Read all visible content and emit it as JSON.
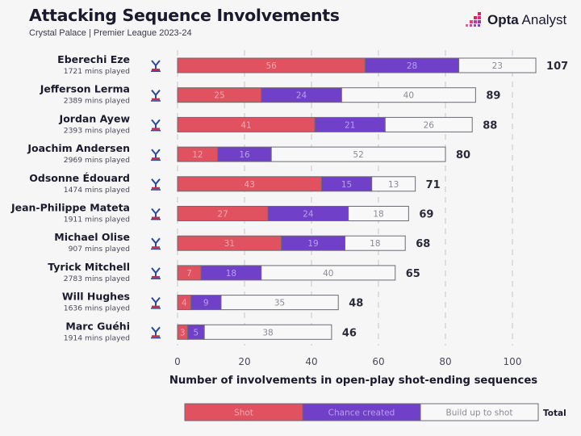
{
  "header": {
    "title": "Attacking Sequence Involvements",
    "subtitle": "Crystal Palace | Premier League 2023-24",
    "brand_bold": "Opta",
    "brand_light": " Analyst"
  },
  "colors": {
    "shot": "#e05260",
    "chance": "#7040c8",
    "buildup": "#f8f8f9",
    "outline": "#6e6a72",
    "grid": "#cfcfd4"
  },
  "chart_data": {
    "type": "bar",
    "orientation": "horizontal",
    "stacked": true,
    "title": "Attacking Sequence Involvements",
    "subtitle": "Crystal Palace | Premier League 2023-24",
    "xlabel": "Number of involvements in open-play shot-ending sequences",
    "ylabel": "",
    "xlim": [
      0,
      107
    ],
    "xticks": [
      0,
      20,
      40,
      60,
      80,
      100
    ],
    "grid": "vertical dashed",
    "legend_position": "bottom",
    "legend": [
      "Shot",
      "Chance created",
      "Build up to shot"
    ],
    "total_label": "Total",
    "categories": [
      "Eberechi Eze",
      "Jefferson Lerma",
      "Jordan Ayew",
      "Joachim Andersen",
      "Odsonne Édouard",
      "Jean-Philippe Mateta",
      "Michael Olise",
      "Tyrick Mitchell",
      "Will Hughes",
      "Marc Guéhi"
    ],
    "minutes": [
      "1721 mins played",
      "2389 mins played",
      "2393 mins played",
      "2969 mins played",
      "1474 mins played",
      "1911 mins played",
      "907 mins played",
      "2783 mins played",
      "1636 mins played",
      "1914 mins played"
    ],
    "series": [
      {
        "name": "Shot",
        "values": [
          56,
          25,
          41,
          12,
          43,
          27,
          31,
          7,
          4,
          3
        ]
      },
      {
        "name": "Chance created",
        "values": [
          28,
          24,
          21,
          16,
          15,
          24,
          19,
          18,
          9,
          5
        ]
      },
      {
        "name": "Build up to shot",
        "values": [
          23,
          40,
          26,
          52,
          13,
          18,
          18,
          40,
          35,
          38
        ]
      }
    ],
    "totals": [
      107,
      89,
      88,
      80,
      71,
      69,
      68,
      65,
      48,
      46
    ]
  }
}
